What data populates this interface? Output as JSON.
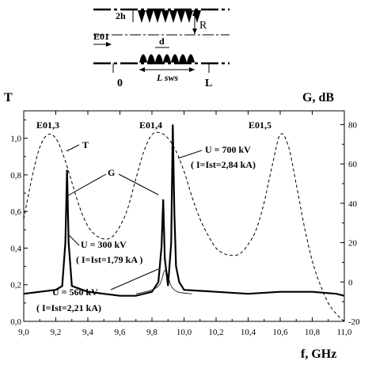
{
  "chart_data": {
    "type": "line",
    "xlabel": "f, GHz",
    "ylabel_left": "T",
    "ylabel_right": "G, dB",
    "xlim": [
      9.0,
      11.0
    ],
    "ylim_left": [
      0.0,
      1.15
    ],
    "ylim_right": [
      -20,
      87
    ],
    "x_ticks": [
      "9,0",
      "9,2",
      "9,4",
      "9,6",
      "9,8",
      "10,0",
      "10,2",
      "10,4",
      "10,6",
      "10,8",
      "11,0"
    ],
    "y_left_ticks": [
      "0,0",
      "0,2",
      "0,4",
      "0,6",
      "0,8",
      "1,0"
    ],
    "y_right_ticks": [
      "-20",
      "0",
      "20",
      "40",
      "60",
      "80"
    ],
    "grid": false,
    "series": [
      {
        "name": "T",
        "axis": "left",
        "style": "dashed",
        "x": [
          9.0,
          9.05,
          9.1,
          9.15,
          9.2,
          9.25,
          9.3,
          9.35,
          9.4,
          9.45,
          9.5,
          9.55,
          9.6,
          9.65,
          9.7,
          9.75,
          9.8,
          9.85,
          9.9,
          9.95,
          10.0,
          10.05,
          10.1,
          10.15,
          10.2,
          10.25,
          10.3,
          10.35,
          10.4,
          10.45,
          10.5,
          10.55,
          10.6,
          10.65,
          10.7,
          10.75,
          10.8,
          10.85,
          10.9,
          10.95,
          11.0
        ],
        "y": [
          0.56,
          0.78,
          0.95,
          1.02,
          1.0,
          0.9,
          0.76,
          0.62,
          0.52,
          0.47,
          0.45,
          0.46,
          0.52,
          0.62,
          0.78,
          0.93,
          1.02,
          1.03,
          1.0,
          0.93,
          0.82,
          0.68,
          0.56,
          0.47,
          0.4,
          0.37,
          0.36,
          0.37,
          0.42,
          0.5,
          0.65,
          0.85,
          1.02,
          0.96,
          0.75,
          0.52,
          0.33,
          0.2,
          0.1,
          0.04,
          0.0
        ]
      },
      {
        "name": "G",
        "axis": "right",
        "style": "solid",
        "x": [
          9.0,
          9.1,
          9.2,
          9.24,
          9.26,
          9.27,
          9.28,
          9.3,
          9.4,
          9.5,
          9.6,
          9.7,
          9.8,
          9.84,
          9.86,
          9.87,
          9.88,
          9.9,
          9.92,
          9.93,
          9.94,
          9.95,
          9.97,
          10.0,
          10.2,
          10.4,
          10.6,
          10.8,
          10.95,
          11.0
        ],
        "y": [
          -6,
          -5,
          -4,
          -2,
          20,
          57,
          20,
          -2,
          -5,
          -6,
          -7,
          -7,
          -5,
          0,
          18,
          42,
          12,
          -2,
          20,
          80,
          35,
          8,
          0,
          -4,
          -5,
          -6,
          -5,
          -5,
          -6,
          -7
        ]
      }
    ],
    "annotations": {
      "E013": "E01,3",
      "E014": "E01,4",
      "E015": "E01,5",
      "T_label": "T",
      "G_label": "G",
      "u700": "U = 700 kV",
      "i700": "( I=Ist=2,84 kA)",
      "u300": "U = 300 kV",
      "i300": "( I=Ist=1,79 kA )",
      "u560": "U = 560 kV",
      "i560": "( I=Ist=2,21 kA)"
    }
  },
  "diagram": {
    "h_label": "2h",
    "r_label": "R",
    "e_label": "E01",
    "d_label": "d",
    "l_sws_label": "L sws",
    "zero_label": "0",
    "l_label": "L"
  }
}
